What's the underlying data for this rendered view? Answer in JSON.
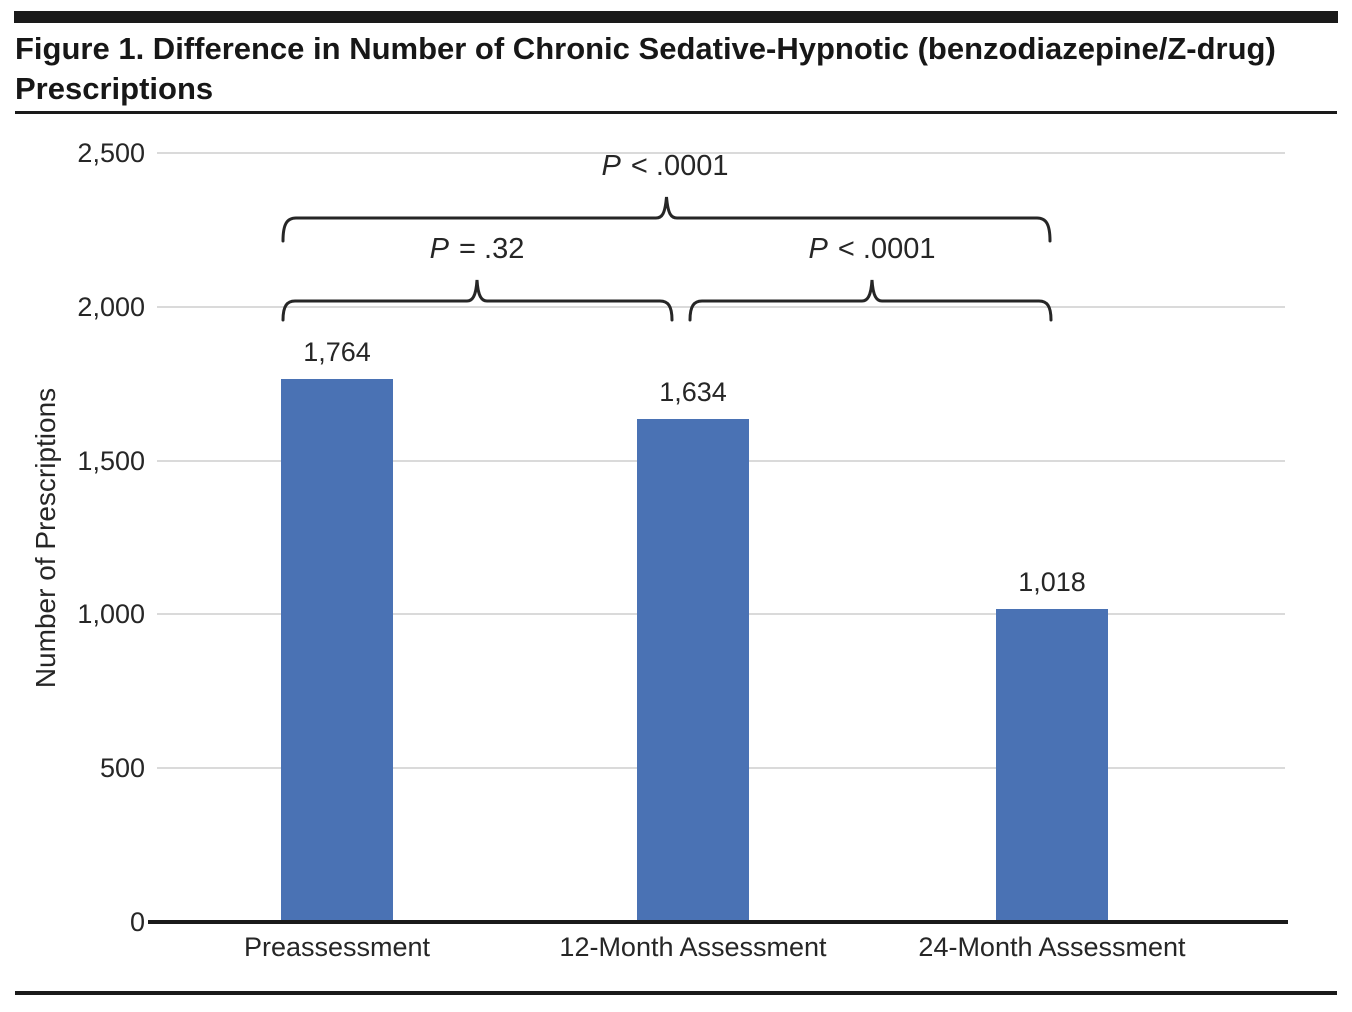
{
  "figure": {
    "title": "Figure 1. Difference in Number of Chronic Sedative-Hypnotic (benzodiazepine/Z-drug) Prescriptions"
  },
  "chart_data": {
    "type": "bar",
    "title": "Figure 1. Difference in Number of Chronic Sedative-Hypnotic (benzodiazepine/Z-drug) Prescriptions",
    "categories": [
      "Preassessment",
      "12-Month Assessment",
      "24-Month Assessment"
    ],
    "values": [
      1764,
      1634,
      1018
    ],
    "value_labels": [
      "1,764",
      "1,634",
      "1,018"
    ],
    "xlabel": "",
    "ylabel": "Number of Prescriptions",
    "ylim": [
      0,
      2500
    ],
    "yticks": [
      {
        "value": 0,
        "label": "0"
      },
      {
        "value": 500,
        "label": "500"
      },
      {
        "value": 1000,
        "label": "1,000"
      },
      {
        "value": 1500,
        "label": "1,500"
      },
      {
        "value": 2000,
        "label": "2,000"
      },
      {
        "value": 2500,
        "label": "2,500"
      }
    ],
    "grid": true,
    "legend": false,
    "bar_color": "#4A72B4",
    "annotations": [
      {
        "label": "P < .0001",
        "from": "Preassessment",
        "to": "24-Month Assessment"
      },
      {
        "label": "P = .32",
        "from": "Preassessment",
        "to": "12-Month Assessment"
      },
      {
        "label": "P < .0001",
        "from": "12-Month Assessment",
        "to": "24-Month Assessment"
      }
    ]
  }
}
